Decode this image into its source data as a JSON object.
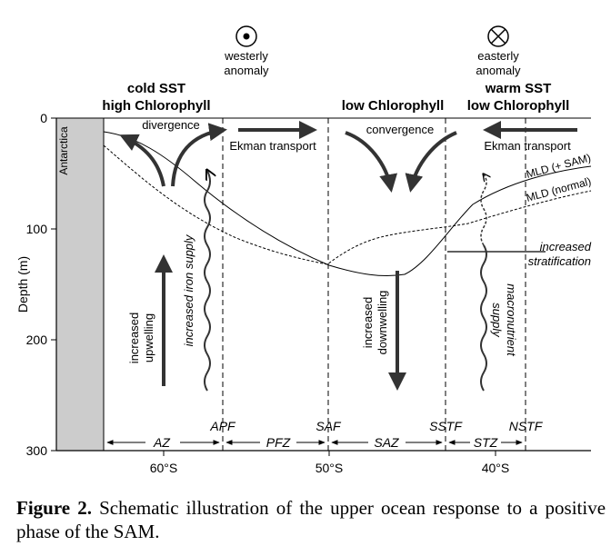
{
  "figure": {
    "westerly_label_line1": "westerly",
    "westerly_label_line2": "anomaly",
    "easterly_label_line1": "easterly",
    "easterly_label_line2": "anomaly",
    "westerly_icon": "out-of-page-dot-icon",
    "easterly_icon": "into-page-cross-icon",
    "heading_left_line1": "cold SST",
    "heading_left_line2": "high Chlorophyll",
    "heading_mid": "low Chlorophyll",
    "heading_right_line1": "warm SST",
    "heading_right_line2": "low Chlorophyll",
    "antarctica_label": "Antarctica",
    "divergence_label": "divergence",
    "convergence_label": "convergence",
    "ekman_left": "Ekman transport",
    "ekman_right": "Ekman transport",
    "mld_sam_label": "MLD (+ SAM)",
    "mld_normal_label": "MLD (normal)",
    "increased_label": "increased",
    "stratification_label": "stratification",
    "upwelling_line1": "increased",
    "upwelling_line2": "upwelling",
    "iron_supply_label": "increased iron supply",
    "downwelling_line1": "increased",
    "downwelling_line2": "downwelling",
    "macro_line1": "macronutrient",
    "macro_line2": "supply",
    "front_labels": [
      "APF",
      "SAF",
      "SSTF",
      "NSTF"
    ],
    "zone_labels": [
      "AZ",
      "PFZ",
      "SAZ",
      "STZ"
    ],
    "ylabel": "Depth (m)",
    "y_ticks": [
      "0",
      "100",
      "200",
      "300"
    ],
    "x_ticks": [
      "60°S",
      "50°S",
      "40°S"
    ],
    "colors": {
      "line": "#000000",
      "antarctica_fill": "#cccccc",
      "arrow": "#333333"
    }
  },
  "caption": {
    "label": "Figure 2.",
    "text": "Schematic illustration of the upper ocean response to a positive phase of the SAM."
  }
}
